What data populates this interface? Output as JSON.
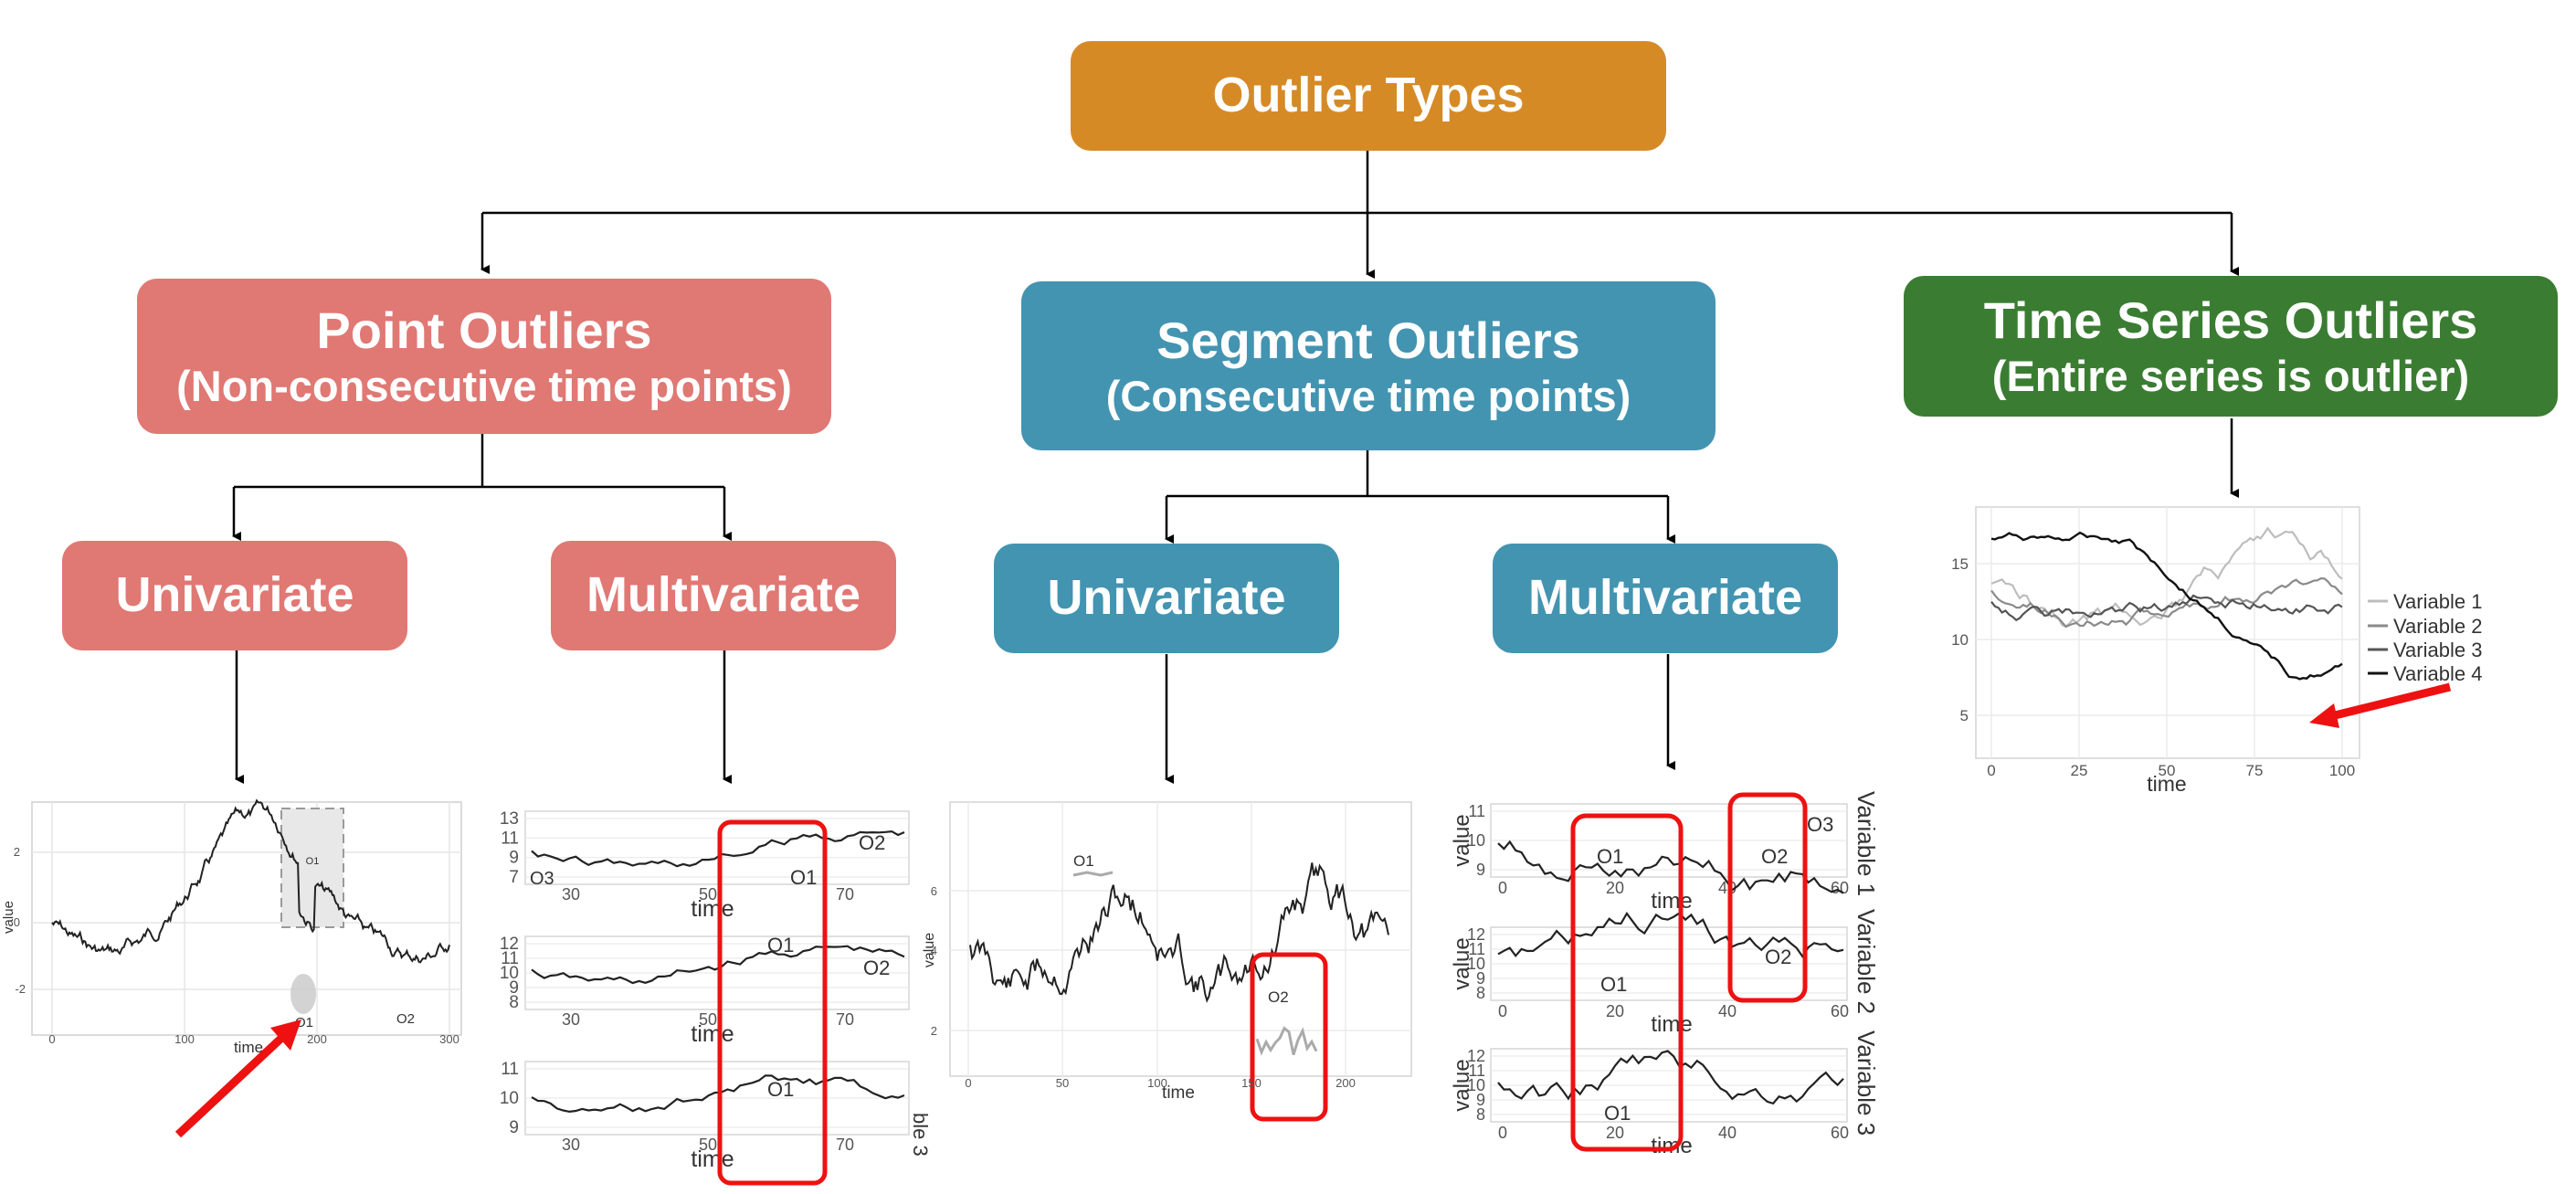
{
  "root": {
    "label": "Outlier Types",
    "color": "#d68a26"
  },
  "branches": [
    {
      "key": "point",
      "title": "Point Outliers",
      "subtitle": "(Non-consecutive time points)",
      "color": "#e07874",
      "children": [
        {
          "label": "Univariate"
        },
        {
          "label": "Multivariate"
        }
      ]
    },
    {
      "key": "segment",
      "title": "Segment Outliers",
      "subtitle": "(Consecutive time points)",
      "color": "#4394b1",
      "children": [
        {
          "label": "Univariate"
        },
        {
          "label": "Multivariate"
        }
      ]
    },
    {
      "key": "series",
      "title": "Time Series Outliers",
      "subtitle": "(Entire series is outlier)",
      "color": "#3a7d32",
      "children": []
    }
  ],
  "plots": {
    "point_univariate": {
      "ylabel": "value",
      "xlabel": "time",
      "yticks": [
        "2",
        "0",
        "-2"
      ],
      "xticks": [
        "0",
        "100",
        "200",
        "300"
      ],
      "annotations": [
        "O1",
        "O1",
        "O2"
      ]
    },
    "point_multivariate": {
      "xlabel": "time",
      "panels": [
        {
          "yticks": [
            "13",
            "11",
            "9",
            "7"
          ],
          "xticks": [
            "30",
            "50",
            "70"
          ],
          "annotations": [
            "O3",
            "O1",
            "O2"
          ]
        },
        {
          "yticks": [
            "12",
            "11",
            "10",
            "9",
            "8"
          ],
          "xticks": [
            "30",
            "50",
            "70"
          ],
          "annotations": [
            "O1",
            "O2"
          ]
        },
        {
          "yticks": [
            "11",
            "10",
            "9"
          ],
          "xticks": [
            "30",
            "50",
            "70"
          ],
          "annotations": [
            "O1"
          ],
          "strip": "ble 3"
        }
      ]
    },
    "segment_univariate": {
      "ylabel": "value",
      "xlabel": "time",
      "yticks": [
        "6",
        "4",
        "2"
      ],
      "xticks": [
        "0",
        "50",
        "100",
        "150",
        "200"
      ],
      "annotations": [
        "O1",
        "O2"
      ]
    },
    "segment_multivariate": {
      "ylabel": "value",
      "xlabel": "time",
      "panels": [
        {
          "yticks": [
            "11",
            "10",
            "9"
          ],
          "xticks": [
            "0",
            "20",
            "40",
            "60"
          ],
          "annotations": [
            "O1",
            "O2",
            "O3"
          ],
          "strip": "Variable 1"
        },
        {
          "yticks": [
            "12",
            "11",
            "10",
            "9",
            "8"
          ],
          "xticks": [
            "0",
            "20",
            "40",
            "60"
          ],
          "annotations": [
            "O1",
            "O2"
          ],
          "strip": "Variable 2"
        },
        {
          "yticks": [
            "12",
            "11",
            "10",
            "9",
            "8"
          ],
          "xticks": [
            "0",
            "20",
            "40",
            "60"
          ],
          "annotations": [
            "O1"
          ],
          "strip": "Variable 3"
        }
      ]
    },
    "series_outlier": {
      "xlabel": "time",
      "yticks": [
        "15",
        "10",
        "5"
      ],
      "xticks": [
        "0",
        "25",
        "50",
        "75",
        "100"
      ],
      "legend": [
        "Variable 1",
        "Variable 2",
        "Variable 3",
        "Variable 4"
      ]
    }
  }
}
